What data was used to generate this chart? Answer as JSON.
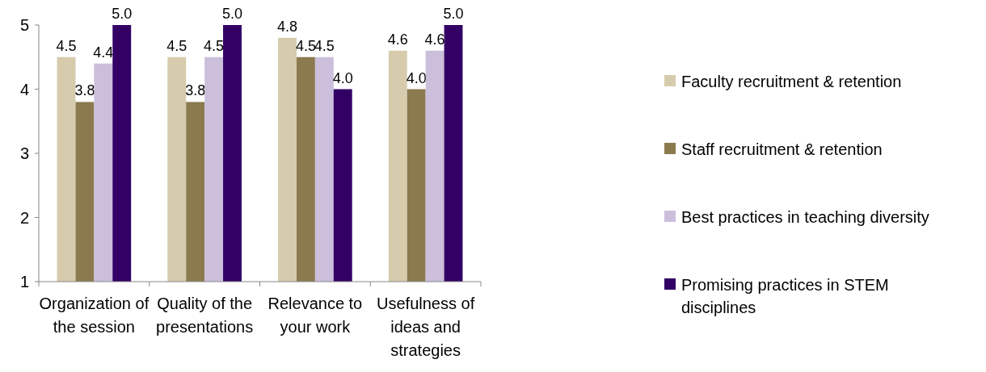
{
  "chart_data": {
    "type": "bar",
    "categories": [
      "Organization of the session",
      "Quality of the presentations",
      "Relevance to your work",
      "Usefulness of ideas and strategies"
    ],
    "series": [
      {
        "name": "Faculty recruitment & retention",
        "color": "#d6cbac",
        "values": [
          4.5,
          4.5,
          4.8,
          4.6
        ],
        "value_labels": [
          "4.5",
          "4.5",
          "4.8",
          "4.6"
        ]
      },
      {
        "name": "Staff recruitment & retention",
        "color": "#8b7a4e",
        "values": [
          3.8,
          3.8,
          4.5,
          4
        ],
        "value_labels": [
          "3.8",
          "3.8",
          "4.5",
          "4.0"
        ]
      },
      {
        "name": "Best practices in teaching diversity",
        "color": "#cbbfdc",
        "values": [
          4.4,
          4.5,
          4.5,
          4.6
        ],
        "value_labels": [
          "4.4",
          "4.5",
          "4.5",
          "4.6"
        ]
      },
      {
        "name": "Promising practices in STEM disciplines",
        "color": "#330066",
        "values": [
          5,
          5,
          4,
          5
        ],
        "value_labels": [
          "5.0",
          "5.0",
          "4.0",
          "5.0"
        ]
      }
    ],
    "ylim": [
      1,
      5
    ],
    "yticks": [
      1,
      2,
      3,
      4,
      5
    ],
    "grid": false,
    "legend": "right"
  }
}
